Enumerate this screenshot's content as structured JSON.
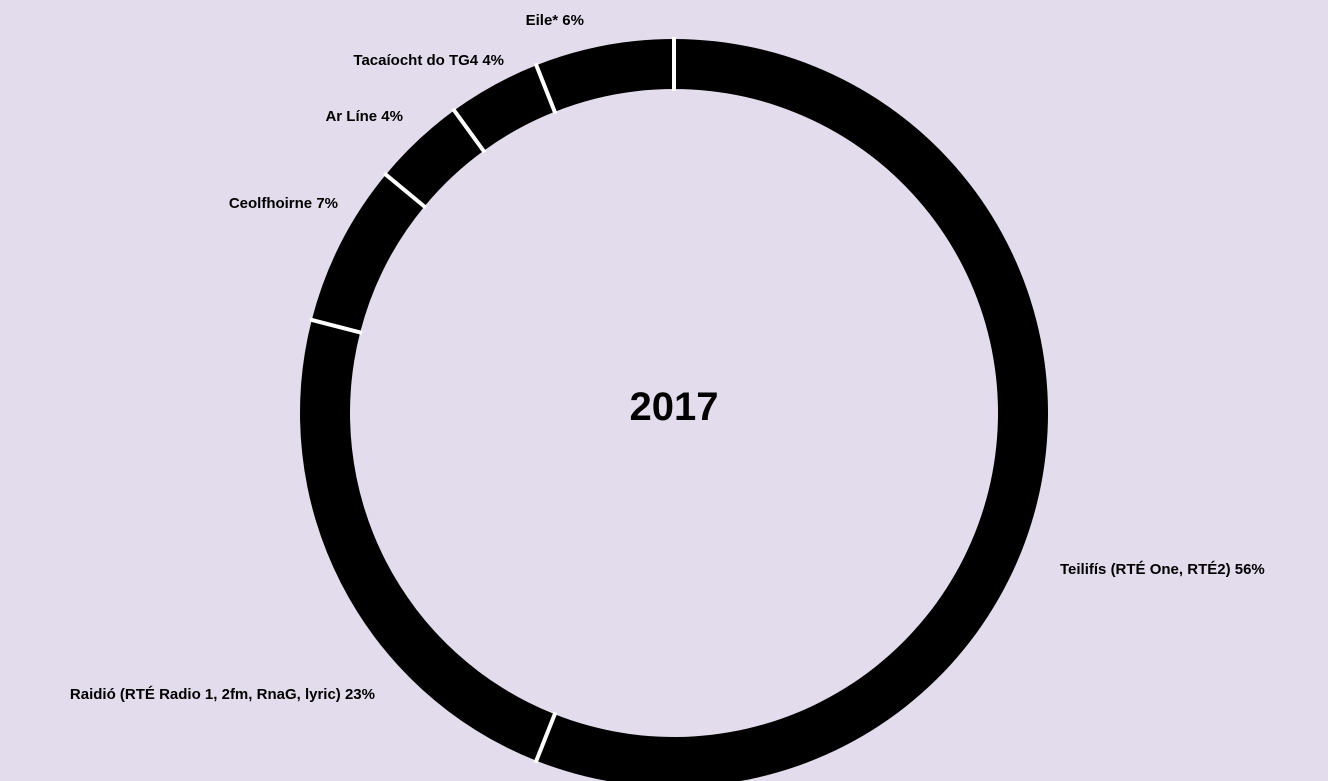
{
  "chart_data": {
    "type": "pie",
    "variant": "donut",
    "title": "2017",
    "slices": [
      {
        "label": "Teilifís (RTÉ One, RTÉ2)",
        "value_label": "56%",
        "value": 56
      },
      {
        "label": "Raidió (RTÉ Radio 1, 2fm, RnaG, lyric)",
        "value_label": "23%",
        "value": 23
      },
      {
        "label": "Ceolfhoirne",
        "value_label": "7%",
        "value": 7
      },
      {
        "label": "Ar Líne",
        "value_label": "4%",
        "value": 4
      },
      {
        "label": "Tacaíocht do TG4",
        "value_label": "4%",
        "value": 4
      },
      {
        "label": "Eile*",
        "value_label": "6%",
        "value": 6
      }
    ],
    "colors": {
      "background": "#e3dcec",
      "slice": "#000000",
      "separator": "#ffffff"
    }
  }
}
